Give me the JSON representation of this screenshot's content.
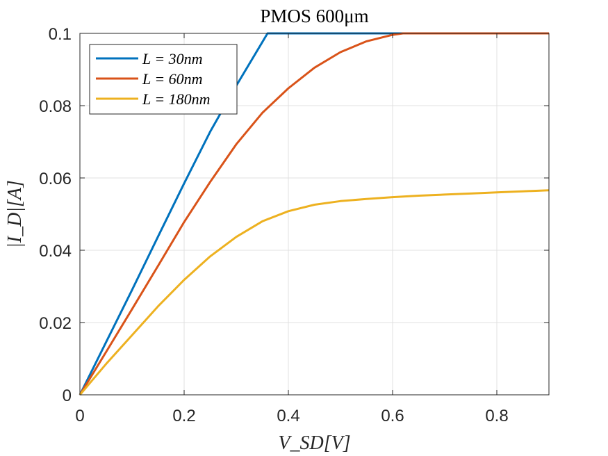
{
  "chart_data": {
    "type": "line",
    "title": "PMOS 600μm",
    "xlabel": "V_SD[V]",
    "ylabel": "|I_D|[A]",
    "xlim": [
      0,
      0.9
    ],
    "ylim": [
      0,
      0.1
    ],
    "xticks": [
      0,
      0.2,
      0.4,
      0.6,
      0.8
    ],
    "yticks": [
      0,
      0.02,
      0.04,
      0.06,
      0.08,
      0.1
    ],
    "xtick_labels": [
      "0",
      "0.2",
      "0.4",
      "0.6",
      "0.8"
    ],
    "ytick_labels": [
      "0",
      "0.02",
      "0.04",
      "0.06",
      "0.08",
      "0.1"
    ],
    "grid": true,
    "legend_position": "top-left",
    "series": [
      {
        "name": "L = 30nm",
        "color": "#0072BD",
        "x": [
          0,
          0.05,
          0.1,
          0.15,
          0.2,
          0.25,
          0.3,
          0.36,
          0.4,
          0.5,
          0.6,
          0.7,
          0.8,
          0.9
        ],
        "y": [
          0,
          0.0145,
          0.029,
          0.0438,
          0.0585,
          0.0728,
          0.0855,
          0.1,
          0.1,
          0.1,
          0.1,
          0.1,
          0.1,
          0.1
        ]
      },
      {
        "name": "L = 60nm",
        "color": "#D95319",
        "x": [
          0,
          0.05,
          0.1,
          0.15,
          0.2,
          0.25,
          0.3,
          0.35,
          0.4,
          0.45,
          0.5,
          0.55,
          0.6,
          0.62,
          0.7,
          0.8,
          0.9
        ],
        "y": [
          0,
          0.0118,
          0.0237,
          0.0357,
          0.0478,
          0.0589,
          0.0693,
          0.078,
          0.0848,
          0.0905,
          0.0948,
          0.0978,
          0.0996,
          0.1,
          0.1,
          0.1,
          0.1
        ]
      },
      {
        "name": "L = 180nm",
        "color": "#EDB120",
        "x": [
          0,
          0.05,
          0.1,
          0.15,
          0.2,
          0.25,
          0.3,
          0.35,
          0.4,
          0.45,
          0.5,
          0.55,
          0.6,
          0.65,
          0.7,
          0.75,
          0.8,
          0.85,
          0.9
        ],
        "y": [
          0,
          0.0085,
          0.0165,
          0.0245,
          0.0318,
          0.0383,
          0.0437,
          0.048,
          0.0508,
          0.0526,
          0.0536,
          0.0542,
          0.0547,
          0.0551,
          0.0554,
          0.0557,
          0.056,
          0.0563,
          0.0566
        ]
      }
    ]
  }
}
